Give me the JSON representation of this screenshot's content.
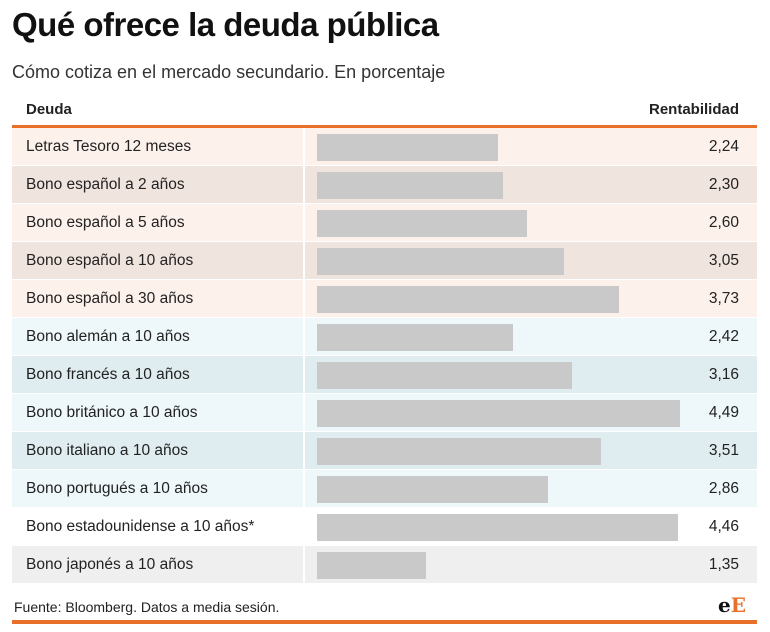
{
  "title": "Qué ofrece la deuda pública",
  "subtitle": "Cómo cotiza en el mercado secundario. En porcentaje",
  "header": {
    "left": "Deuda",
    "right": "Rentabilidad"
  },
  "footer": {
    "source": "Fuente: Bloomberg. Datos a media sesión."
  },
  "logo": {
    "text": "eE",
    "part1": "e",
    "part2": "E"
  },
  "colors": {
    "accent": "#e8702a",
    "bar": "#c9c9c9",
    "spain_light": "#fdf1ec",
    "spain_dark": "#f0e4de",
    "intl_light": "#eef8fb",
    "intl_dark": "#dfecf0",
    "us_row": "#ffffff",
    "japan_row": "#efefef"
  },
  "chart_data": {
    "type": "bar",
    "orientation": "horizontal",
    "title": "Qué ofrece la deuda pública",
    "subtitle": "Cómo cotiza en el mercado secundario. En porcentaje",
    "xlim": [
      0,
      4.49
    ],
    "categories": [
      "Letras Tesoro 12 meses",
      "Bono español a 2 años",
      "Bono español a 5 años",
      "Bono español a 10 años",
      "Bono español a 30 años",
      "Bono alemán a 10 años",
      "Bono francés a 10 años",
      "Bono británico a 10 años",
      "Bono italiano a 10 años",
      "Bono portugués a 10 años",
      "Bono estadounidense a 10 años*",
      "Bono japonés a 10 años"
    ],
    "values": [
      2.24,
      2.3,
      2.6,
      3.05,
      3.73,
      2.42,
      3.16,
      4.49,
      3.51,
      2.86,
      4.46,
      1.35
    ],
    "value_labels": [
      "2,24",
      "2,30",
      "2,60",
      "3,05",
      "3,73",
      "2,42",
      "3,16",
      "4,49",
      "3,51",
      "2,86",
      "4,46",
      "1,35"
    ],
    "row_groups": [
      "spain",
      "spain",
      "spain",
      "spain",
      "spain",
      "intl",
      "intl",
      "intl",
      "intl",
      "intl",
      "us",
      "japan"
    ]
  }
}
